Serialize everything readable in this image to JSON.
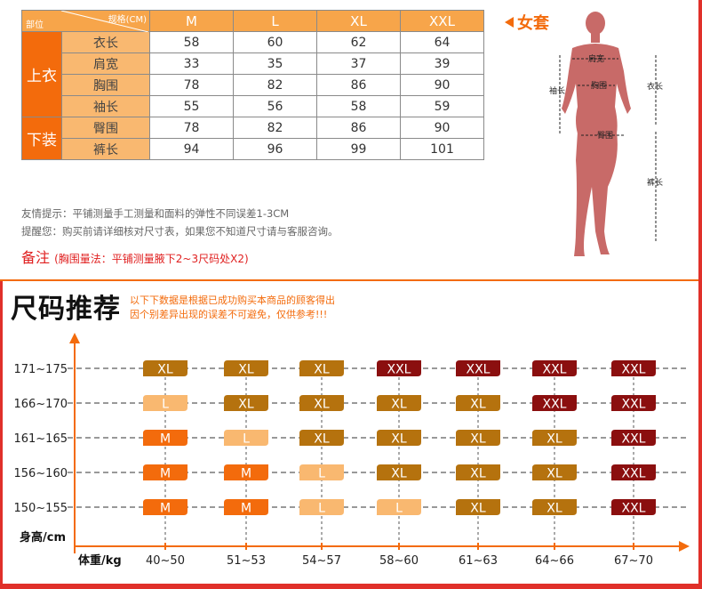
{
  "size_table": {
    "header_spec": "规格(CM)",
    "header_part": "部位",
    "sizes": [
      "M",
      "L",
      "XL",
      "XXL"
    ],
    "groups": [
      {
        "category": "上衣",
        "rows": [
          {
            "part": "衣长",
            "values": [
              "58",
              "60",
              "62",
              "64"
            ]
          },
          {
            "part": "肩宽",
            "values": [
              "33",
              "35",
              "37",
              "39"
            ]
          },
          {
            "part": "胸围",
            "values": [
              "78",
              "82",
              "86",
              "90"
            ]
          },
          {
            "part": "袖长",
            "values": [
              "55",
              "56",
              "58",
              "59"
            ]
          }
        ]
      },
      {
        "category": "下装",
        "rows": [
          {
            "part": "臀围",
            "values": [
              "78",
              "82",
              "86",
              "90"
            ]
          },
          {
            "part": "裤长",
            "values": [
              "94",
              "96",
              "99",
              "101"
            ]
          }
        ]
      }
    ]
  },
  "figure": {
    "title": "女套",
    "labels": {
      "shoulder": "肩宽",
      "chest": "胸围",
      "sleeve": "袖长",
      "length": "衣长",
      "hip": "臀围",
      "pants": "裤长"
    },
    "colors": {
      "body": "#c86a68",
      "accent": "#f36b0c"
    }
  },
  "tips": {
    "line1": "友情提示：平铺测量手工测量和面料的弹性不同误差1-3CM",
    "line2": "提醒您：购买前请详细核对尺寸表，如果您不知道尺寸请与客服咨询。",
    "note_label": "备注",
    "note_text": "(胸围量法：平铺测量腋下2~3尺码处X2)"
  },
  "recommend": {
    "title": "尺码推荐",
    "desc_line1": "以下下数据是根据已成功购买本商品的顾客得出",
    "desc_line2": "因个别差异出现的误差不可避免，仅供参考!!!"
  },
  "chart_data": {
    "type": "table",
    "xlabel": "体重/kg",
    "ylabel": "身高/cm",
    "x_categories": [
      "40~50",
      "51~53",
      "54~57",
      "58~60",
      "61~63",
      "64~66",
      "67~70"
    ],
    "y_categories": [
      "171~175",
      "166~170",
      "161~165",
      "156~160",
      "150~155"
    ],
    "cells": [
      [
        "XL",
        "XL",
        "XL",
        "XXL",
        "XXL",
        "XXL",
        "XXL"
      ],
      [
        "L",
        "XL",
        "XL",
        "XL",
        "XL",
        "XXL",
        "XXL"
      ],
      [
        "M",
        "L",
        "XL",
        "XL",
        "XL",
        "XL",
        "XXL"
      ],
      [
        "M",
        "M",
        "L",
        "XL",
        "XL",
        "XL",
        "XXL"
      ],
      [
        "M",
        "M",
        "L",
        "L",
        "XL",
        "XL",
        "XXL"
      ]
    ],
    "size_colors": {
      "M": "#f36b0c",
      "L": "#f9b870",
      "XL": "#b5720e",
      "XXL": "#8b0f0f"
    },
    "axis_color": "#f36b0c"
  }
}
